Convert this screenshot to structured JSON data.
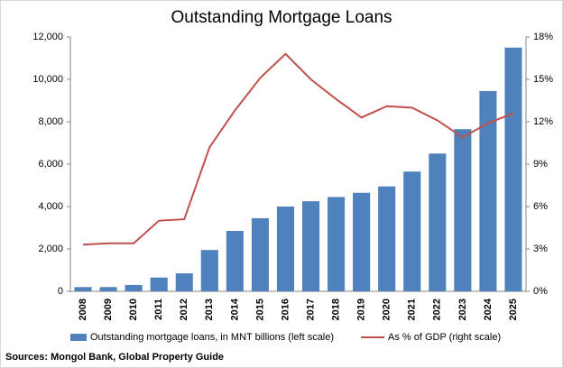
{
  "chart_data": {
    "type": "bar",
    "title": "Outstanding Mortgage Loans",
    "categories": [
      "2008",
      "2009",
      "2010",
      "2011",
      "2012",
      "2013",
      "2014",
      "2015",
      "2016",
      "2017",
      "2018",
      "2019",
      "2020",
      "2021",
      "2022",
      "2023",
      "2024",
      "2025"
    ],
    "series": [
      {
        "name": "Outstanding mortgage loans, in MNT billions (left scale)",
        "type": "bar",
        "axis": "y",
        "color": "#4f81bd",
        "values": [
          200,
          200,
          300,
          650,
          850,
          1950,
          2850,
          3450,
          4000,
          4250,
          4450,
          4650,
          4950,
          5650,
          6500,
          7650,
          9450,
          11500
        ]
      },
      {
        "name": "As % of GDP (right scale)",
        "type": "line",
        "axis": "y2",
        "color": "#c0504d",
        "values": [
          3.3,
          3.4,
          3.4,
          5.0,
          5.1,
          10.2,
          12.8,
          15.1,
          16.8,
          15.0,
          13.6,
          12.3,
          13.1,
          13.0,
          12.1,
          10.9,
          11.9,
          12.6
        ]
      }
    ],
    "ylim": [
      0,
      12000
    ],
    "yticks": [
      0,
      {
        "value": 2000,
        "label": "2,000"
      },
      {
        "value": 4000,
        "label": "4,000"
      },
      {
        "value": 6000,
        "label": "6,000"
      },
      {
        "value": 8000,
        "label": "8,000"
      },
      {
        "value": 10000,
        "label": "10,000"
      },
      {
        "value": 12000,
        "label": "12,000"
      }
    ],
    "y2lim": [
      0,
      18
    ],
    "y2ticks": [
      {
        "value": 0,
        "label": "0%"
      },
      {
        "value": 3,
        "label": "3%"
      },
      {
        "value": 6,
        "label": "6%"
      },
      {
        "value": 9,
        "label": "9%"
      },
      {
        "value": 12,
        "label": "12%"
      },
      {
        "value": 15,
        "label": "15%"
      },
      {
        "value": 18,
        "label": "18%"
      }
    ],
    "source": "Sources: Mongol Bank, Global Property Guide"
  }
}
